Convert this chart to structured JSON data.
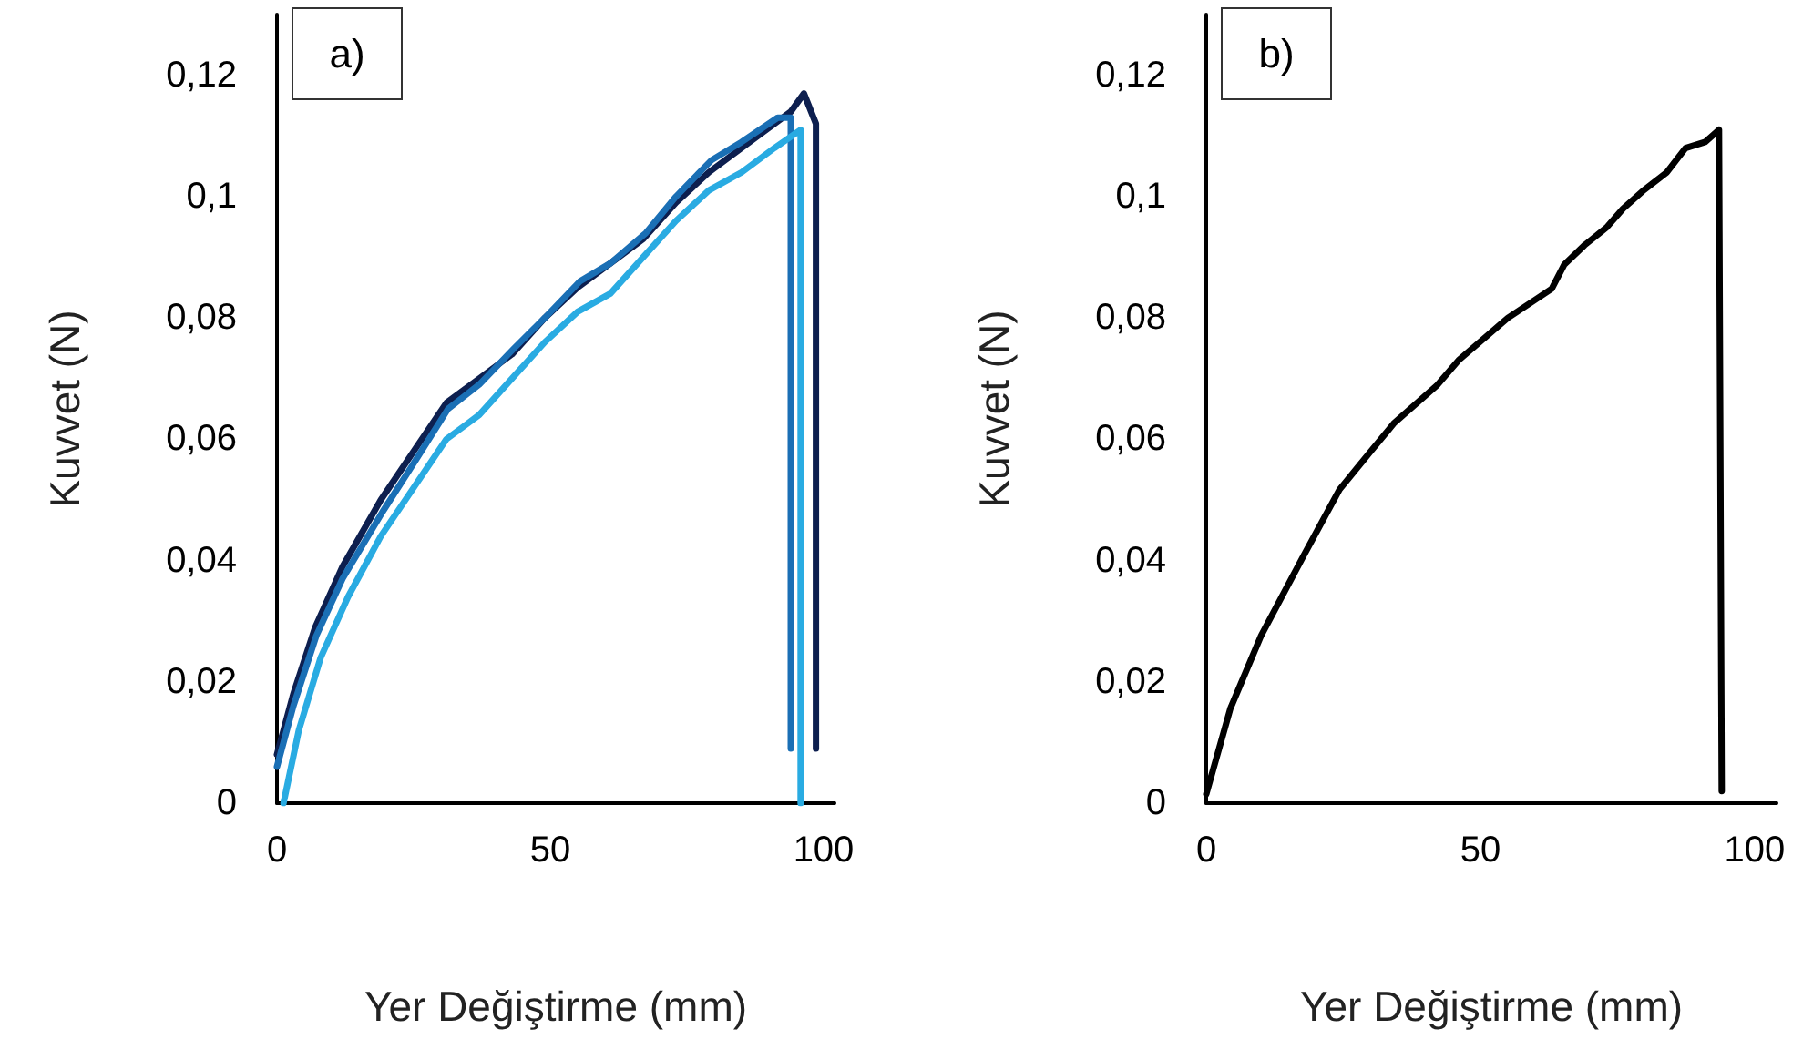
{
  "chart_data": [
    {
      "type": "line",
      "xlabel": "Yer Değiştirme (mm)",
      "ylabel": "Kuvvet (N)",
      "annotations": [
        "a)"
      ],
      "marker": "none",
      "line_style": "solid",
      "xlim": [
        0,
        102
      ],
      "xticks": [
        0,
        50,
        100
      ],
      "ylim": [
        0,
        0.13
      ],
      "yticks": [
        0,
        {
          "value": 0.02,
          "label": "0,02"
        },
        {
          "value": 0.04,
          "label": "0,04"
        },
        {
          "value": 0.06,
          "label": "0,06"
        },
        {
          "value": 0.08,
          "label": "0,08"
        },
        {
          "value": 0.1,
          "label": "0,1"
        },
        {
          "value": 0.12,
          "label": "0,12"
        }
      ],
      "series": [
        {
          "color": "#0d1f4f",
          "x": [
            0,
            3,
            7,
            12,
            19,
            25,
            31,
            37,
            43,
            49,
            55,
            61,
            67,
            73,
            79,
            85,
            91,
            94,
            96.4,
            98.6,
            98.6
          ],
          "values": [
            0.008,
            0.018,
            0.029,
            0.039,
            0.05,
            0.058,
            0.066,
            0.07,
            0.074,
            0.08,
            0.085,
            0.089,
            0.093,
            0.099,
            0.104,
            0.108,
            0.112,
            0.114,
            0.117,
            0.112,
            0.009
          ]
        },
        {
          "color": "#1a6fb5",
          "x": [
            0,
            3,
            7.2,
            12,
            19.3,
            25,
            31.3,
            37,
            43.4,
            49,
            55.4,
            61,
            67.5,
            73,
            79.5,
            85,
            91.6,
            94,
            94
          ],
          "values": [
            0.006,
            0.016,
            0.0276,
            0.037,
            0.048,
            0.056,
            0.065,
            0.069,
            0.075,
            0.08,
            0.086,
            0.089,
            0.094,
            0.1,
            0.106,
            0.109,
            0.113,
            0.113,
            0.009
          ]
        },
        {
          "color": "#29abe2",
          "x": [
            1.2,
            4,
            8,
            13,
            19,
            25,
            31,
            37,
            43,
            49,
            55,
            61,
            67,
            73,
            79,
            85,
            91,
            95.8,
            95.8
          ],
          "values": [
            0,
            0.012,
            0.024,
            0.034,
            0.044,
            0.052,
            0.06,
            0.064,
            0.07,
            0.076,
            0.081,
            0.084,
            0.09,
            0.096,
            0.101,
            0.104,
            0.108,
            0.111,
            0
          ]
        }
      ]
    },
    {
      "type": "line",
      "xlabel": "Yer Değiştirme (mm)",
      "ylabel": "Kuvvet (N)",
      "annotations": [
        "b)"
      ],
      "marker": "none",
      "line_style": "solid",
      "xlim": [
        0,
        104
      ],
      "xticks": [
        0,
        50,
        100
      ],
      "ylim": [
        0,
        0.13
      ],
      "yticks": [
        0,
        {
          "value": 0.02,
          "label": "0,02"
        },
        {
          "value": 0.04,
          "label": "0,04"
        },
        {
          "value": 0.06,
          "label": "0,06"
        },
        {
          "value": 0.08,
          "label": "0,08"
        },
        {
          "value": 0.1,
          "label": "0,1"
        },
        {
          "value": 0.12,
          "label": "0,12"
        }
      ],
      "series": [
        {
          "color": "#000000",
          "x": [
            0,
            4.4,
            10,
            17.7,
            24.3,
            30,
            34.3,
            42,
            46,
            50.9,
            55,
            59.7,
            63,
            65.3,
            69,
            73,
            76,
            79.6,
            84,
            87.4,
            91,
            93.5,
            94
          ],
          "values": [
            0.0015,
            0.0156,
            0.0276,
            0.0407,
            0.0517,
            0.058,
            0.0627,
            0.0688,
            0.073,
            0.0768,
            0.08,
            0.0828,
            0.0848,
            0.0888,
            0.092,
            0.0949,
            0.098,
            0.1009,
            0.104,
            0.108,
            0.109,
            0.111,
            0.002
          ]
        }
      ]
    }
  ]
}
